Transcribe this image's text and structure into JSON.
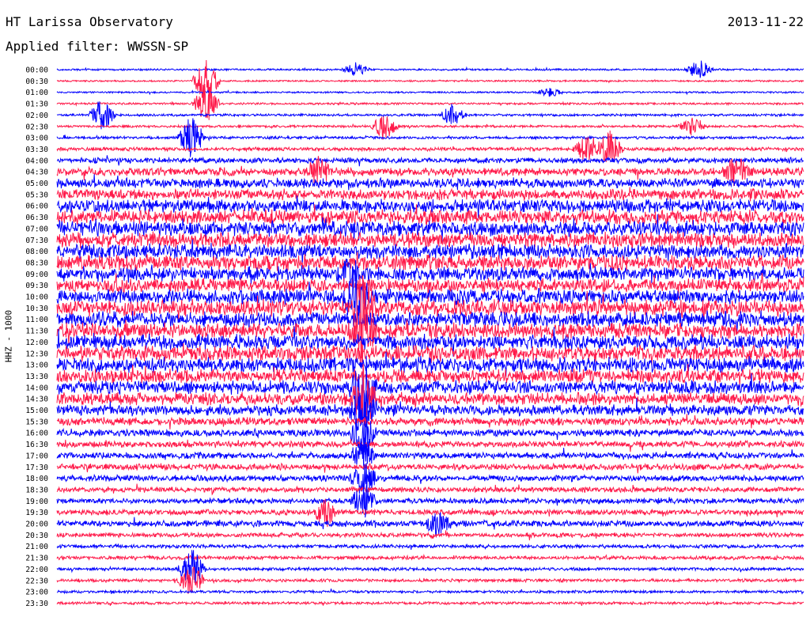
{
  "header": {
    "station": "HT Larissa Observatory",
    "date": "2013-11-22",
    "filter": "Applied filter: WWSSN-SP",
    "channel": "HHZ - 1000"
  },
  "colors": {
    "trace_a": "#0000ff",
    "trace_b": "#ff1a4a",
    "text": "#000000",
    "background": "#ffffff"
  },
  "chart_data": {
    "type": "line",
    "subtype": "helicorder-seismogram",
    "title": "HT Larissa Observatory",
    "row_labels": [
      "00:00",
      "00:30",
      "01:00",
      "01:30",
      "02:00",
      "02:30",
      "03:00",
      "03:30",
      "04:00",
      "04:30",
      "05:00",
      "05:30",
      "06:00",
      "06:30",
      "07:00",
      "07:30",
      "08:00",
      "08:30",
      "09:00",
      "09:30",
      "10:00",
      "10:30",
      "11:00",
      "11:30",
      "12:00",
      "12:30",
      "13:00",
      "13:30",
      "14:00",
      "14:30",
      "15:00",
      "15:30",
      "16:00",
      "16:30",
      "17:00",
      "17:30",
      "18:00",
      "18:30",
      "19:00",
      "19:30",
      "20:00",
      "20:30",
      "21:00",
      "21:30",
      "22:00",
      "22:30",
      "23:00",
      "23:30"
    ],
    "relative_noise_level": [
      0.05,
      0.04,
      0.04,
      0.06,
      0.08,
      0.08,
      0.1,
      0.15,
      0.25,
      0.4,
      0.5,
      0.55,
      0.7,
      0.75,
      0.8,
      0.8,
      0.8,
      0.8,
      0.75,
      0.7,
      0.8,
      0.85,
      0.8,
      0.8,
      0.8,
      0.8,
      0.8,
      0.75,
      0.7,
      0.65,
      0.55,
      0.4,
      0.35,
      0.3,
      0.3,
      0.3,
      0.3,
      0.25,
      0.25,
      0.25,
      0.3,
      0.2,
      0.15,
      0.15,
      0.12,
      0.12,
      0.1,
      0.1
    ],
    "events": [
      {
        "row": 0,
        "time_fraction": 0.4,
        "amplitude": 0.5
      },
      {
        "row": 0,
        "time_fraction": 0.86,
        "amplitude": 0.7
      },
      {
        "row": 1,
        "time_fraction": 0.2,
        "amplitude": 2.0
      },
      {
        "row": 2,
        "time_fraction": 0.66,
        "amplitude": 0.3
      },
      {
        "row": 3,
        "time_fraction": 0.2,
        "amplitude": 1.5
      },
      {
        "row": 4,
        "time_fraction": 0.53,
        "amplitude": 0.8
      },
      {
        "row": 4,
        "time_fraction": 0.06,
        "amplitude": 1.2
      },
      {
        "row": 5,
        "time_fraction": 0.44,
        "amplitude": 1.1
      },
      {
        "row": 5,
        "time_fraction": 0.85,
        "amplitude": 0.6
      },
      {
        "row": 6,
        "time_fraction": 0.18,
        "amplitude": 1.6
      },
      {
        "row": 7,
        "time_fraction": 0.71,
        "amplitude": 1.0
      },
      {
        "row": 7,
        "time_fraction": 0.74,
        "amplitude": 1.4
      },
      {
        "row": 9,
        "time_fraction": 0.35,
        "amplitude": 1.0
      },
      {
        "row": 9,
        "time_fraction": 0.91,
        "amplitude": 1.2
      },
      {
        "row": 18,
        "time_fraction": 0.39,
        "amplitude": 1.0
      },
      {
        "row": 20,
        "time_fraction": 0.4,
        "amplitude": 2.0
      },
      {
        "row": 21,
        "time_fraction": 0.41,
        "amplitude": 2.5
      },
      {
        "row": 23,
        "time_fraction": 0.41,
        "amplitude": 2.0
      },
      {
        "row": 28,
        "time_fraction": 0.41,
        "amplitude": 2.5
      },
      {
        "row": 29,
        "time_fraction": 0.41,
        "amplitude": 2.2
      },
      {
        "row": 30,
        "time_fraction": 0.41,
        "amplitude": 2.0
      },
      {
        "row": 32,
        "time_fraction": 0.41,
        "amplitude": 1.6
      },
      {
        "row": 34,
        "time_fraction": 0.41,
        "amplitude": 1.3
      },
      {
        "row": 36,
        "time_fraction": 0.41,
        "amplitude": 1.2
      },
      {
        "row": 38,
        "time_fraction": 0.41,
        "amplitude": 1.2
      },
      {
        "row": 39,
        "time_fraction": 0.36,
        "amplitude": 1.0
      },
      {
        "row": 40,
        "time_fraction": 0.51,
        "amplitude": 0.8
      },
      {
        "row": 44,
        "time_fraction": 0.18,
        "amplitude": 1.5
      },
      {
        "row": 45,
        "time_fraction": 0.18,
        "amplitude": 1.2
      }
    ]
  }
}
